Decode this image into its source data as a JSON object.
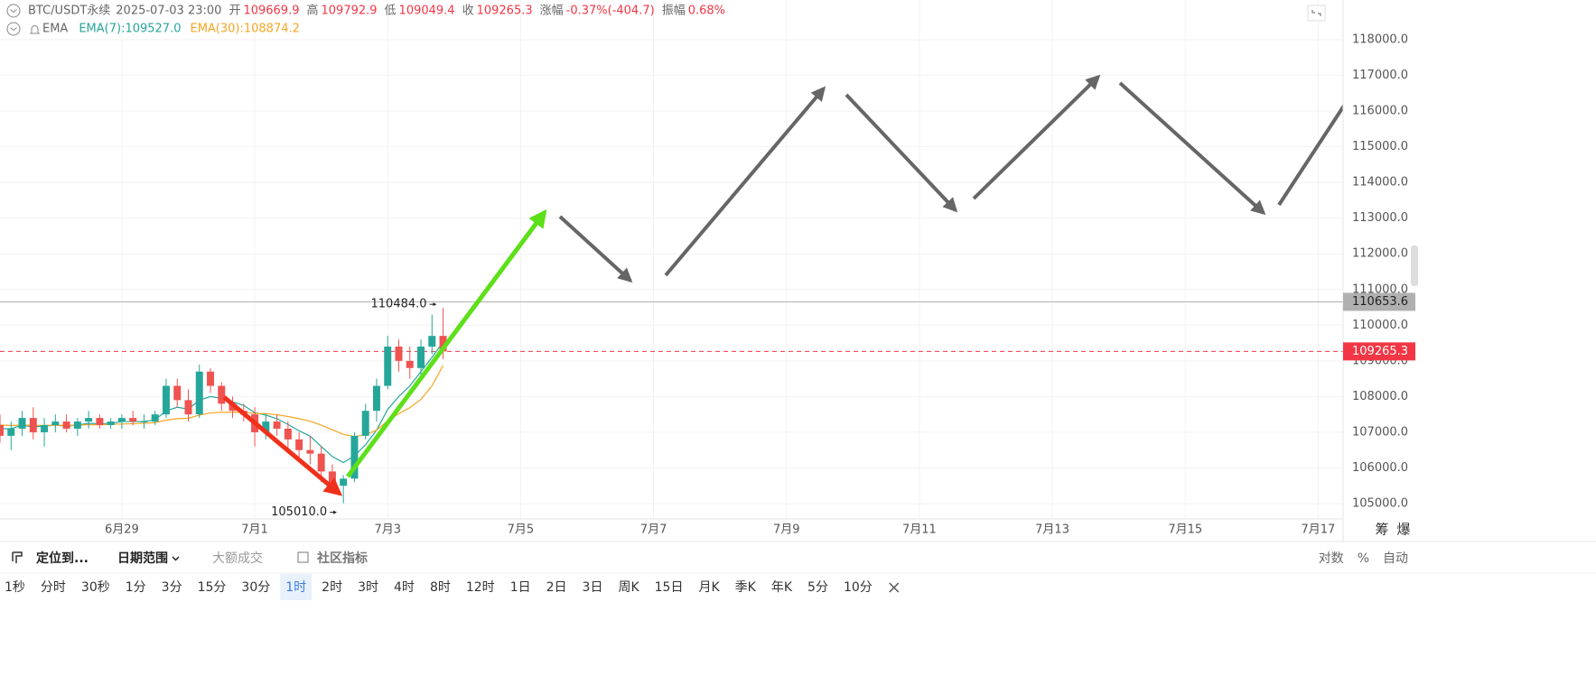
{
  "header": {
    "symbol": "BTC/USDT永续",
    "time": "2025-07-03 23:00",
    "fields": [
      {
        "label": "开",
        "value": "109669.9"
      },
      {
        "label": "高",
        "value": "109792.9"
      },
      {
        "label": "低",
        "value": "109049.4"
      },
      {
        "label": "收",
        "value": "109265.3"
      },
      {
        "label": "涨幅",
        "value": "-0.37%(-404.7)"
      },
      {
        "label": "振幅",
        "value": "0.68%"
      }
    ],
    "indicator": "EMA"
  },
  "chart_data": {
    "type": "candlestick",
    "x": [
      "2025-06-27 04:00",
      "2025-06-27 08:00",
      "2025-06-27 12:00",
      "2025-06-27 16:00",
      "2025-06-27 20:00",
      "2025-06-28 00:00",
      "2025-06-28 04:00",
      "2025-06-28 08:00",
      "2025-06-28 12:00",
      "2025-06-28 16:00",
      "2025-06-28 20:00",
      "2025-06-29 00:00",
      "2025-06-29 04:00",
      "2025-06-29 08:00",
      "2025-06-29 12:00",
      "2025-06-29 16:00",
      "2025-06-29 20:00",
      "2025-06-30 00:00",
      "2025-06-30 04:00",
      "2025-06-30 08:00",
      "2025-06-30 12:00",
      "2025-06-30 16:00",
      "2025-06-30 20:00",
      "2025-07-01 00:00",
      "2025-07-01 04:00",
      "2025-07-01 08:00",
      "2025-07-01 12:00",
      "2025-07-01 16:00",
      "2025-07-01 20:00",
      "2025-07-02 00:00",
      "2025-07-02 04:00",
      "2025-07-02 08:00",
      "2025-07-02 12:00",
      "2025-07-02 16:00",
      "2025-07-02 20:00",
      "2025-07-03 00:00",
      "2025-07-03 04:00",
      "2025-07-03 08:00",
      "2025-07-03 12:00",
      "2025-07-03 16:00",
      "2025-07-03 20:00"
    ],
    "open": [
      107200,
      106900,
      107100,
      107400,
      107000,
      107200,
      107300,
      107100,
      107300,
      107400,
      107200,
      107300,
      107400,
      107300,
      107300,
      107500,
      108300,
      107900,
      107500,
      108700,
      108300,
      107800,
      107600,
      107500,
      107000,
      107300,
      107100,
      106800,
      106500,
      106400,
      105900,
      105500,
      105700,
      106900,
      107600,
      108300,
      109400,
      109000,
      108800,
      109400,
      109700
    ],
    "high": [
      107500,
      107300,
      107600,
      107700,
      107400,
      107500,
      107500,
      107400,
      107600,
      107500,
      107400,
      107500,
      107600,
      107500,
      107600,
      108500,
      108500,
      108200,
      108900,
      108800,
      108400,
      108000,
      107800,
      107700,
      107500,
      107500,
      107300,
      107000,
      106900,
      106600,
      106100,
      105800,
      107000,
      107800,
      108500,
      109700,
      109600,
      109400,
      109600,
      110300,
      110484
    ],
    "low": [
      106700,
      106500,
      106900,
      106800,
      106600,
      107000,
      107000,
      106900,
      107100,
      107100,
      107100,
      107100,
      107200,
      107100,
      107200,
      107400,
      107700,
      107300,
      107400,
      108100,
      107600,
      107400,
      107300,
      106600,
      106800,
      106900,
      106400,
      106300,
      106100,
      105600,
      105300,
      105010,
      105600,
      106800,
      107300,
      108200,
      108700,
      108500,
      108600,
      109200,
      109049.4
    ],
    "close": [
      106900,
      107100,
      107400,
      107000,
      107200,
      107300,
      107100,
      107300,
      107400,
      107200,
      107300,
      107400,
      107300,
      107300,
      107500,
      108300,
      107900,
      107500,
      108700,
      108300,
      107800,
      107600,
      107500,
      107000,
      107300,
      107100,
      106800,
      106500,
      106400,
      105900,
      105500,
      105700,
      106900,
      107600,
      108300,
      109400,
      109000,
      108800,
      109400,
      109700,
      109265.3
    ],
    "up_color": "#26a69a",
    "down_color": "#ef5350",
    "series": [
      {
        "name": "EMA(7):109527.0",
        "color": "#26a69a",
        "values": [
          107100,
          107100,
          107200,
          107150,
          107170,
          107200,
          107170,
          107200,
          107250,
          107240,
          107250,
          107300,
          107300,
          107300,
          107350,
          107600,
          107700,
          107650,
          107900,
          108000,
          107950,
          107850,
          107750,
          107550,
          107480,
          107380,
          107220,
          107040,
          106890,
          106600,
          106320,
          106150,
          106340,
          106650,
          107060,
          107640,
          108000,
          108300,
          108700,
          109100,
          109527
        ]
      },
      {
        "name": "EMA(30):108874.2",
        "color": "#f5a623",
        "values": [
          107200,
          107190,
          107200,
          107190,
          107190,
          107200,
          107190,
          107200,
          107210,
          107210,
          107220,
          107230,
          107240,
          107250,
          107270,
          107340,
          107380,
          107390,
          107480,
          107540,
          107560,
          107560,
          107560,
          107530,
          107520,
          107490,
          107440,
          107380,
          107310,
          107200,
          107070,
          106940,
          106880,
          106930,
          107060,
          107320,
          107520,
          107690,
          107920,
          108300,
          108874.2
        ]
      }
    ],
    "high_label": {
      "value": 110484,
      "label": "110484.0"
    },
    "low_label": {
      "value": 105010,
      "label": "105010.0"
    },
    "price_lines": [
      {
        "value": 110653.6,
        "color": "#b0b0b0",
        "text_color": "#222222",
        "dashed": false
      },
      {
        "value": 109265.3,
        "color": "#f23645",
        "text_color": "#ffffff",
        "dashed": true
      }
    ],
    "xlim": [
      "2025-06-27 04:00",
      "2025-07-17 09:00"
    ],
    "xticks": [
      {
        "value": "2025-06-29 00:00",
        "label": "6月29"
      },
      {
        "value": "2025-07-01 00:00",
        "label": "7月1"
      },
      {
        "value": "2025-07-03 00:00",
        "label": "7月3"
      },
      {
        "value": "2025-07-05 00:00",
        "label": "7月5"
      },
      {
        "value": "2025-07-07 00:00",
        "label": "7月7"
      },
      {
        "value": "2025-07-09 00:00",
        "label": "7月9"
      },
      {
        "value": "2025-07-11 00:00",
        "label": "7月11"
      },
      {
        "value": "2025-07-13 00:00",
        "label": "7月13"
      },
      {
        "value": "2025-07-15 00:00",
        "label": "7月15"
      },
      {
        "value": "2025-07-17 00:00",
        "label": "7月17"
      }
    ],
    "ylim": [
      104570,
      119113
    ],
    "yticks": [
      {
        "value": 105000,
        "label": "105000.0"
      },
      {
        "value": 106000,
        "label": "106000.0"
      },
      {
        "value": 107000,
        "label": "107000.0"
      },
      {
        "value": 108000,
        "label": "108000.0"
      },
      {
        "value": 109000,
        "label": "109000.0"
      },
      {
        "value": 110000,
        "label": "110000.0"
      },
      {
        "value": 111000,
        "label": "111000.0"
      },
      {
        "value": 112000,
        "label": "112000.0"
      },
      {
        "value": 113000,
        "label": "113000.0"
      },
      {
        "value": 114000,
        "label": "114000.0"
      },
      {
        "value": 115000,
        "label": "115000.0"
      },
      {
        "value": 116000,
        "label": "116000.0"
      },
      {
        "value": 117000,
        "label": "117000.0"
      },
      {
        "value": 118000,
        "label": "118000.0"
      }
    ],
    "grid": true,
    "axis_buttons": [
      "筹",
      "爆"
    ]
  },
  "toolbar": {
    "left": [
      "定位到...",
      "日期范围",
      "大额成交",
      "社区指标"
    ],
    "right": [
      "对数",
      "%",
      "自动"
    ]
  },
  "intervals": {
    "items": [
      "1秒",
      "分时",
      "30秒",
      "1分",
      "3分",
      "15分",
      "30分",
      "1时",
      "2时",
      "3时",
      "4时",
      "8时",
      "12时",
      "1日",
      "2日",
      "3日",
      "周K",
      "15日",
      "月K",
      "季K",
      "年K",
      "5分",
      "10分"
    ],
    "active_index": 7
  }
}
